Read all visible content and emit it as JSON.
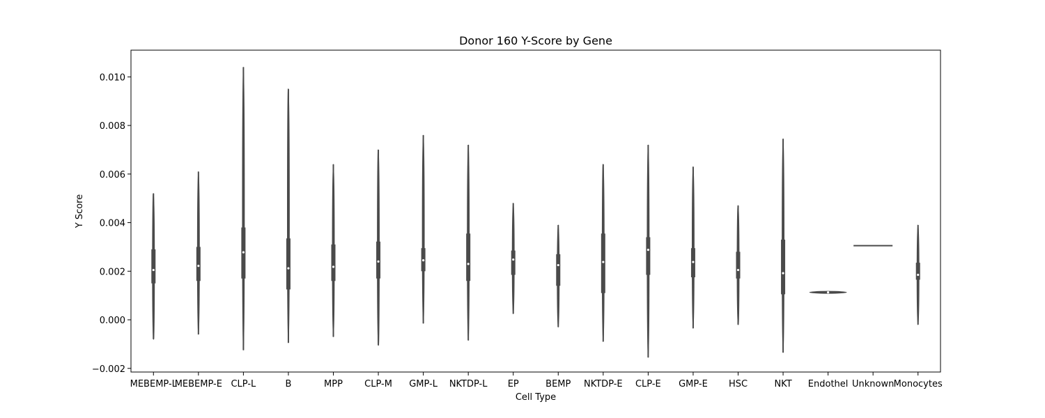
{
  "chart_data": {
    "type": "violin",
    "title": "Donor 160 Y-Score by Gene",
    "xlabel": "Cell Type",
    "ylabel": "Y Score",
    "ylim": [
      -0.00215,
      0.0111
    ],
    "yticks": [
      "−0.002",
      "0.000",
      "0.002",
      "0.004",
      "0.006",
      "0.008",
      "0.010"
    ],
    "ytick_values": [
      -0.002,
      0.0,
      0.002,
      0.004,
      0.006,
      0.008,
      0.01
    ],
    "grid": false,
    "color": "#4a4a4a",
    "categories": [
      "MEBEMP-L",
      "MEBEMP-E",
      "CLP-L",
      "B",
      "MPP",
      "CLP-M",
      "GMP-L",
      "NKTDP-L",
      "EP",
      "BEMP",
      "NKTDP-E",
      "CLP-E",
      "GMP-E",
      "HSC",
      "NKT",
      "Endothel",
      "Unknown",
      "Monocytes"
    ],
    "stats": [
      {
        "min": -0.0008,
        "q1": 0.0015,
        "median": 0.00205,
        "q3": 0.0029,
        "max": 0.0052
      },
      {
        "min": -0.0006,
        "q1": 0.0016,
        "median": 0.00222,
        "q3": 0.003,
        "max": 0.0061
      },
      {
        "min": -0.00125,
        "q1": 0.0017,
        "median": 0.00278,
        "q3": 0.0038,
        "max": 0.0104
      },
      {
        "min": -0.00095,
        "q1": 0.00125,
        "median": 0.00212,
        "q3": 0.00335,
        "max": 0.0095
      },
      {
        "min": -0.0007,
        "q1": 0.0016,
        "median": 0.00218,
        "q3": 0.0031,
        "max": 0.0064
      },
      {
        "min": -0.00105,
        "q1": 0.0017,
        "median": 0.0024,
        "q3": 0.00322,
        "max": 0.007
      },
      {
        "min": -0.00015,
        "q1": 0.002,
        "median": 0.00245,
        "q3": 0.00295,
        "max": 0.0076
      },
      {
        "min": -0.00085,
        "q1": 0.0016,
        "median": 0.0023,
        "q3": 0.00355,
        "max": 0.0072
      },
      {
        "min": 0.00025,
        "q1": 0.00185,
        "median": 0.00248,
        "q3": 0.00285,
        "max": 0.0048
      },
      {
        "min": -0.0003,
        "q1": 0.0014,
        "median": 0.00225,
        "q3": 0.0027,
        "max": 0.0039
      },
      {
        "min": -0.0009,
        "q1": 0.0011,
        "median": 0.00238,
        "q3": 0.00355,
        "max": 0.0064
      },
      {
        "min": -0.00155,
        "q1": 0.00185,
        "median": 0.00288,
        "q3": 0.0034,
        "max": 0.0072
      },
      {
        "min": -0.00035,
        "q1": 0.00175,
        "median": 0.00238,
        "q3": 0.00295,
        "max": 0.0063
      },
      {
        "min": -0.0002,
        "q1": 0.0017,
        "median": 0.00205,
        "q3": 0.0028,
        "max": 0.0047
      },
      {
        "min": -0.00135,
        "q1": 0.00105,
        "median": 0.00192,
        "q3": 0.0033,
        "max": 0.00745
      },
      {
        "min": 0.0011,
        "q1": 0.0011,
        "median": 0.00113,
        "q3": 0.00118,
        "max": 0.00118
      },
      {
        "min": 0.00305,
        "q1": 0.00305,
        "median": 0.00305,
        "q3": 0.00305,
        "max": 0.00305
      },
      {
        "min": -0.0002,
        "q1": 0.00165,
        "median": 0.00185,
        "q3": 0.00235,
        "max": 0.0039
      }
    ]
  }
}
